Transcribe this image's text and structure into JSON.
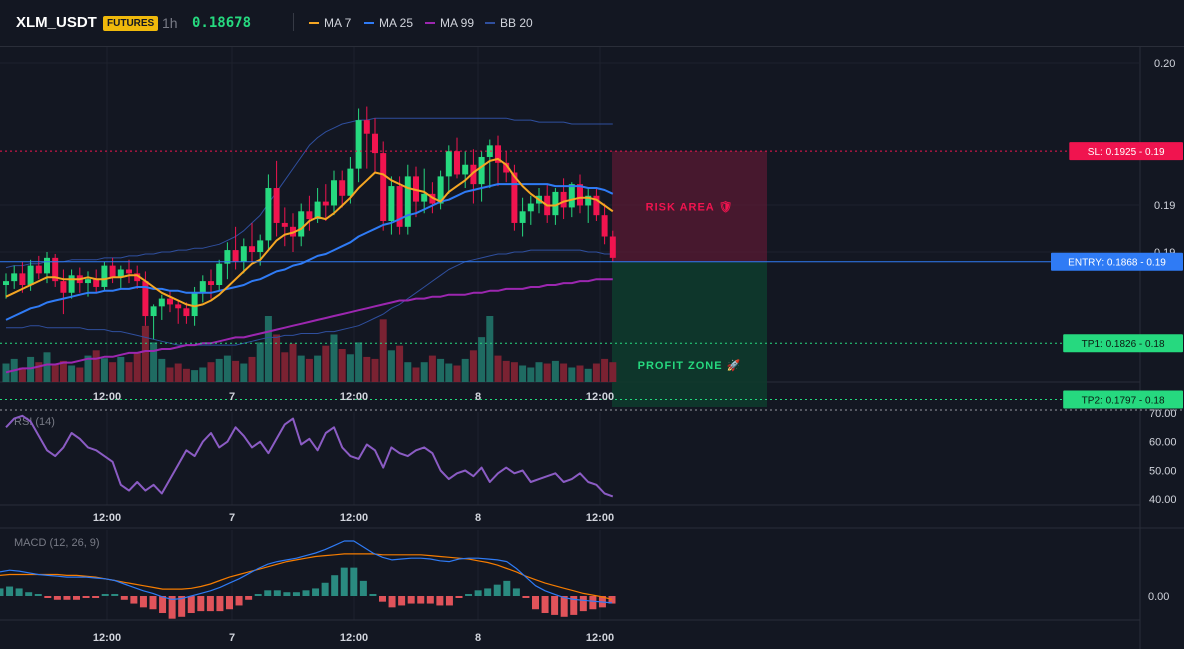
{
  "header": {
    "symbol": "XLM_USDT",
    "badge": "FUTURES",
    "timeframe": "1h",
    "last_price": "0.18678",
    "indicators": [
      {
        "label": "MA 7",
        "color": "#f5a623"
      },
      {
        "label": "MA 25",
        "color": "#2f7bf5"
      },
      {
        "label": "MA 99",
        "color": "#9c27b0"
      },
      {
        "label": "BB 20",
        "color": "#2f4f9e"
      }
    ]
  },
  "colors": {
    "background": "#131722",
    "bull": "#26d97f",
    "bear": "#f0144f",
    "vol_bull": "#1f6b62",
    "vol_bear": "#7a2232",
    "sl": "#f0144f",
    "entry": "#2f7bf5",
    "tp": "#26d97f",
    "rsi": "#8b5cc4",
    "macd": "#2f7bf5",
    "signal": "#f57c00",
    "hist_pos": "#2a8a80",
    "hist_neg": "#e0535a"
  },
  "chart_data": {
    "type": "candlestick",
    "x_ticks": [
      "12:00",
      "7",
      "12:00",
      "8",
      "12:00"
    ],
    "y_ticks": [
      "0.20",
      "0.19",
      "0.19"
    ],
    "candles": [
      [
        0.1856,
        0.1862,
        0.1849,
        0.1858
      ],
      [
        0.1858,
        0.1866,
        0.1854,
        0.1862
      ],
      [
        0.1862,
        0.1868,
        0.1852,
        0.1856
      ],
      [
        0.1856,
        0.1869,
        0.1853,
        0.1866
      ],
      [
        0.1866,
        0.1871,
        0.1859,
        0.1862
      ],
      [
        0.1862,
        0.1873,
        0.1857,
        0.187
      ],
      [
        0.187,
        0.1872,
        0.1855,
        0.1858
      ],
      [
        0.1858,
        0.1864,
        0.1841,
        0.1852
      ],
      [
        0.1852,
        0.1864,
        0.1849,
        0.1861
      ],
      [
        0.1861,
        0.1865,
        0.1852,
        0.1857
      ],
      [
        0.1857,
        0.1863,
        0.185,
        0.1859
      ],
      [
        0.1859,
        0.1864,
        0.1852,
        0.1855
      ],
      [
        0.1855,
        0.1868,
        0.1853,
        0.1866
      ],
      [
        0.1866,
        0.187,
        0.1857,
        0.186
      ],
      [
        0.186,
        0.1866,
        0.1854,
        0.1864
      ],
      [
        0.1864,
        0.1869,
        0.1857,
        0.1862
      ],
      [
        0.1862,
        0.1866,
        0.1854,
        0.1858
      ],
      [
        0.1858,
        0.1863,
        0.1835,
        0.184
      ],
      [
        0.184,
        0.1846,
        0.1828,
        0.1845
      ],
      [
        0.1845,
        0.1851,
        0.1838,
        0.1849
      ],
      [
        0.1849,
        0.1853,
        0.1842,
        0.1846
      ],
      [
        0.1846,
        0.1848,
        0.1836,
        0.1844
      ],
      [
        0.1844,
        0.1847,
        0.1836,
        0.184
      ],
      [
        0.184,
        0.1855,
        0.1835,
        0.1852
      ],
      [
        0.1852,
        0.1861,
        0.1847,
        0.1858
      ],
      [
        0.1858,
        0.1864,
        0.1849,
        0.1856
      ],
      [
        0.1856,
        0.1869,
        0.1853,
        0.1867
      ],
      [
        0.1867,
        0.1878,
        0.1859,
        0.1874
      ],
      [
        0.1874,
        0.1886,
        0.1864,
        0.1868
      ],
      [
        0.1868,
        0.188,
        0.1862,
        0.1876
      ],
      [
        0.1876,
        0.1888,
        0.1868,
        0.1873
      ],
      [
        0.1873,
        0.1882,
        0.1866,
        0.1879
      ],
      [
        0.1879,
        0.1913,
        0.1874,
        0.1906
      ],
      [
        0.1906,
        0.192,
        0.1881,
        0.1888
      ],
      [
        0.1888,
        0.1896,
        0.1876,
        0.1886
      ],
      [
        0.1886,
        0.1893,
        0.1873,
        0.1881
      ],
      [
        0.1881,
        0.1898,
        0.1876,
        0.1894
      ],
      [
        0.1894,
        0.1902,
        0.1884,
        0.189
      ],
      [
        0.189,
        0.1906,
        0.1888,
        0.1899
      ],
      [
        0.1899,
        0.1908,
        0.1889,
        0.1897
      ],
      [
        0.1897,
        0.1915,
        0.1892,
        0.191
      ],
      [
        0.191,
        0.1915,
        0.1896,
        0.1902
      ],
      [
        0.1902,
        0.1922,
        0.1898,
        0.1916
      ],
      [
        0.1916,
        0.1947,
        0.1909,
        0.1941
      ],
      [
        0.1941,
        0.1948,
        0.1916,
        0.1934
      ],
      [
        0.1934,
        0.1942,
        0.1914,
        0.1924
      ],
      [
        0.1924,
        0.193,
        0.1884,
        0.1889
      ],
      [
        0.1889,
        0.1912,
        0.1882,
        0.1907
      ],
      [
        0.1907,
        0.1912,
        0.1882,
        0.1886
      ],
      [
        0.1886,
        0.1918,
        0.1882,
        0.1912
      ],
      [
        0.1912,
        0.1917,
        0.1891,
        0.1899
      ],
      [
        0.1899,
        0.1916,
        0.1893,
        0.1903
      ],
      [
        0.1903,
        0.1909,
        0.1893,
        0.1898
      ],
      [
        0.1898,
        0.1915,
        0.1895,
        0.1912
      ],
      [
        0.1912,
        0.1928,
        0.1903,
        0.1925
      ],
      [
        0.1925,
        0.1932,
        0.1911,
        0.1913
      ],
      [
        0.1913,
        0.1925,
        0.1906,
        0.1918
      ],
      [
        0.1918,
        0.1926,
        0.1898,
        0.1908
      ],
      [
        0.1908,
        0.1925,
        0.1899,
        0.1922
      ],
      [
        0.1922,
        0.1931,
        0.1906,
        0.1928
      ],
      [
        0.1928,
        0.1933,
        0.1907,
        0.1919
      ],
      [
        0.1919,
        0.1925,
        0.1909,
        0.1914
      ],
      [
        0.1914,
        0.1918,
        0.1884,
        0.1888
      ],
      [
        0.1888,
        0.1901,
        0.1881,
        0.1894
      ],
      [
        0.1894,
        0.1902,
        0.1887,
        0.1898
      ],
      [
        0.1898,
        0.1906,
        0.1893,
        0.1902
      ],
      [
        0.1902,
        0.1908,
        0.1888,
        0.1892
      ],
      [
        0.1892,
        0.1906,
        0.1887,
        0.1904
      ],
      [
        0.1904,
        0.1911,
        0.189,
        0.1896
      ],
      [
        0.1896,
        0.1909,
        0.1891,
        0.1908
      ],
      [
        0.1908,
        0.1913,
        0.1893,
        0.1897
      ],
      [
        0.1897,
        0.1906,
        0.1888,
        0.1902
      ],
      [
        0.1902,
        0.1906,
        0.1889,
        0.1892
      ],
      [
        0.1892,
        0.1898,
        0.1877,
        0.1881
      ],
      [
        0.1881,
        0.1884,
        0.1868,
        0.187
      ]
    ],
    "ma7": [
      0.185,
      0.1852,
      0.1854,
      0.1856,
      0.1858,
      0.186,
      0.186,
      0.1859,
      0.1859,
      0.1859,
      0.186,
      0.1859,
      0.1859,
      0.186,
      0.186,
      0.1861,
      0.1861,
      0.1858,
      0.1855,
      0.1852,
      0.185,
      0.1848,
      0.1846,
      0.1845,
      0.1846,
      0.1848,
      0.1851,
      0.1855,
      0.1859,
      0.1863,
      0.1867,
      0.1869,
      0.1874,
      0.1879,
      0.1882,
      0.1883,
      0.1885,
      0.1889,
      0.1891,
      0.189,
      0.1893,
      0.1897,
      0.1901,
      0.1906,
      0.191,
      0.1914,
      0.1913,
      0.191,
      0.1908,
      0.1906,
      0.1905,
      0.1904,
      0.1901,
      0.1899,
      0.1904,
      0.1907,
      0.191,
      0.1914,
      0.1917,
      0.192,
      0.1921,
      0.1918,
      0.1912,
      0.1907,
      0.1903,
      0.19,
      0.1897,
      0.1897,
      0.1899,
      0.19,
      0.1901,
      0.1901,
      0.19,
      0.1897,
      0.1894
    ],
    "ma25": [
      0.1838,
      0.184,
      0.1842,
      0.1844,
      0.1845,
      0.1847,
      0.1848,
      0.1849,
      0.185,
      0.1851,
      0.1852,
      0.1852,
      0.1853,
      0.1853,
      0.1854,
      0.1854,
      0.1855,
      0.1855,
      0.1854,
      0.1854,
      0.1853,
      0.1853,
      0.1852,
      0.1852,
      0.1852,
      0.1852,
      0.1853,
      0.1854,
      0.1855,
      0.1856,
      0.1858,
      0.1859,
      0.1861,
      0.1863,
      0.1864,
      0.1866,
      0.1867,
      0.1869,
      0.1871,
      0.1872,
      0.1874,
      0.1876,
      0.1878,
      0.1881,
      0.1883,
      0.1885,
      0.1887,
      0.1888,
      0.189,
      0.1892,
      0.1893,
      0.1895,
      0.1897,
      0.1899,
      0.19,
      0.1902,
      0.1904,
      0.1905,
      0.1906,
      0.1907,
      0.1908,
      0.1908,
      0.1908,
      0.1908,
      0.1908,
      0.1908,
      0.1908,
      0.1907,
      0.1907,
      0.1907,
      0.1907,
      0.1906,
      0.1906,
      0.1905,
      0.1903
    ],
    "ma99": [
      0.1811,
      0.1812,
      0.1813,
      0.1813,
      0.1814,
      0.1815,
      0.1815,
      0.1816,
      0.1816,
      0.1817,
      0.1818,
      0.1818,
      0.1819,
      0.1819,
      0.182,
      0.1821,
      0.1821,
      0.1822,
      0.1822,
      0.1823,
      0.1823,
      0.1824,
      0.1825,
      0.1825,
      0.1826,
      0.1826,
      0.1827,
      0.1828,
      0.1829,
      0.1829,
      0.183,
      0.1831,
      0.1832,
      0.1833,
      0.1834,
      0.1835,
      0.1836,
      0.1837,
      0.1838,
      0.1839,
      0.184,
      0.1841,
      0.1842,
      0.1843,
      0.1844,
      0.1845,
      0.1846,
      0.1847,
      0.1848,
      0.1848,
      0.1849,
      0.1849,
      0.185,
      0.185,
      0.1851,
      0.1851,
      0.1851,
      0.1852,
      0.1852,
      0.1853,
      0.1853,
      0.1854,
      0.1854,
      0.1854,
      0.1855,
      0.1855,
      0.1856,
      0.1856,
      0.1857,
      0.1857,
      0.1858,
      0.1858,
      0.1859,
      0.1859,
      0.1859
    ],
    "bb_upper": [
      0.1865,
      0.1866,
      0.1866,
      0.1867,
      0.1867,
      0.1868,
      0.1868,
      0.1868,
      0.1869,
      0.1869,
      0.1869,
      0.1869,
      0.187,
      0.187,
      0.187,
      0.1871,
      0.1871,
      0.1872,
      0.1872,
      0.1873,
      0.1873,
      0.1874,
      0.1874,
      0.1875,
      0.1875,
      0.1876,
      0.1877,
      0.1879,
      0.1881,
      0.1884,
      0.1888,
      0.1892,
      0.1898,
      0.1904,
      0.191,
      0.1916,
      0.1922,
      0.1928,
      0.1932,
      0.1935,
      0.1937,
      0.1939,
      0.194,
      0.1941,
      0.1941,
      0.1942,
      0.1942,
      0.1942,
      0.1942,
      0.1942,
      0.1942,
      0.1942,
      0.1942,
      0.1942,
      0.1942,
      0.1942,
      0.1942,
      0.1942,
      0.1942,
      0.1942,
      0.1942,
      0.1942,
      0.1941,
      0.1941,
      0.1941,
      0.194,
      0.194,
      0.194,
      0.194,
      0.1939,
      0.1939,
      0.1939,
      0.1939,
      0.1939,
      0.1939
    ],
    "bb_lower": [
      0.1834,
      0.1834,
      0.1834,
      0.1835,
      0.1835,
      0.1834,
      0.1834,
      0.1834,
      0.1834,
      0.1834,
      0.1833,
      0.1833,
      0.1833,
      0.1832,
      0.1832,
      0.1831,
      0.183,
      0.1829,
      0.1828,
      0.1827,
      0.1826,
      0.1825,
      0.1825,
      0.1825,
      0.1825,
      0.1825,
      0.1825,
      0.1825,
      0.1825,
      0.1826,
      0.1827,
      0.1828,
      0.1829,
      0.1829,
      0.183,
      0.183,
      0.1831,
      0.1831,
      0.1831,
      0.1832,
      0.1832,
      0.1833,
      0.1834,
      0.1835,
      0.1837,
      0.1839,
      0.1841,
      0.1844,
      0.1846,
      0.1849,
      0.1852,
      0.1855,
      0.1858,
      0.1861,
      0.1864,
      0.1866,
      0.1868,
      0.1869,
      0.187,
      0.1871,
      0.1872,
      0.1872,
      0.1873,
      0.1873,
      0.1874,
      0.1874,
      0.1874,
      0.1874,
      0.1874,
      0.1874,
      0.1874,
      0.1873,
      0.1873,
      0.1872,
      0.1872
    ],
    "volume": [
      0.28,
      0.35,
      0.22,
      0.38,
      0.3,
      0.45,
      0.28,
      0.32,
      0.25,
      0.22,
      0.4,
      0.48,
      0.36,
      0.3,
      0.38,
      0.3,
      0.45,
      0.85,
      0.6,
      0.35,
      0.22,
      0.28,
      0.2,
      0.18,
      0.22,
      0.3,
      0.35,
      0.4,
      0.32,
      0.28,
      0.38,
      0.6,
      1.0,
      0.72,
      0.45,
      0.58,
      0.4,
      0.35,
      0.4,
      0.55,
      0.72,
      0.5,
      0.42,
      0.6,
      0.38,
      0.35,
      0.95,
      0.48,
      0.55,
      0.3,
      0.22,
      0.3,
      0.4,
      0.35,
      0.28,
      0.25,
      0.35,
      0.48,
      0.68,
      1.0,
      0.4,
      0.32,
      0.3,
      0.25,
      0.22,
      0.3,
      0.28,
      0.32,
      0.28,
      0.22,
      0.25,
      0.2,
      0.28,
      0.35,
      0.3
    ],
    "levels": {
      "sl": {
        "label": "SL: 0.1925 - 0.19",
        "value": 0.1925
      },
      "entry": {
        "label": "ENTRY: 0.1868 - 0.19",
        "value": 0.1868
      },
      "tp1": {
        "label": "TP1: 0.1826 - 0.18",
        "value": 0.1826
      },
      "tp2": {
        "label": "TP2: 0.1797 - 0.18",
        "value": 0.1797
      }
    },
    "zones": {
      "risk": {
        "label": "RISK AREA 🛡",
        "from": 0.1925,
        "to": 0.1868
      },
      "profit": {
        "label": "PROFIT ZONE 🚀",
        "from": 0.1868,
        "to": 0.177
      }
    },
    "rsi": {
      "label": "RSI (14)",
      "y_ticks": [
        "70.00",
        "60.00",
        "50.00",
        "40.00"
      ],
      "values": [
        65,
        68,
        69,
        67,
        62,
        57,
        55,
        58,
        63,
        61,
        58,
        57,
        55,
        53,
        45,
        43,
        46,
        43,
        45,
        42,
        47,
        52,
        57,
        55,
        60,
        63,
        58,
        60,
        65,
        62,
        58,
        60,
        56,
        61,
        66,
        68,
        59,
        61,
        57,
        63,
        65,
        58,
        55,
        54,
        59,
        57,
        51,
        58,
        56,
        55,
        57,
        58,
        56,
        50,
        47,
        49,
        50,
        48,
        51,
        46,
        49,
        51,
        49,
        50,
        46,
        47,
        48,
        49,
        46,
        47,
        49,
        46,
        45,
        42,
        41
      ]
    },
    "macd": {
      "label": "MACD (12, 26, 9)",
      "y_ticks": [
        "0.00"
      ],
      "macd": [
        0.00028,
        0.0003,
        0.00029,
        0.00027,
        0.00025,
        0.00024,
        0.00023,
        0.00022,
        0.00022,
        0.00022,
        0.00021,
        0.0002,
        0.00018,
        0.00014,
        0.0001,
        6e-05,
        3e-05,
        -1e-05,
        -4e-05,
        -3e-05,
        0.0,
        3e-05,
        6e-05,
        0.0001,
        0.00015,
        0.0002,
        0.00026,
        0.00032,
        0.00037,
        0.0004,
        0.00042,
        0.00044,
        0.00047,
        0.0005,
        0.00054,
        0.00059,
        0.00064,
        0.00064,
        0.00057,
        0.0005,
        0.00045,
        0.00042,
        0.00043,
        0.00044,
        0.00044,
        0.00043,
        0.00041,
        0.0004,
        0.00043,
        0.00044,
        0.00044,
        0.00043,
        0.00042,
        0.0004,
        0.00032,
        0.00022,
        0.00012,
        6e-05,
        2e-05,
        -2e-05,
        -4e-05,
        -5e-05,
        -6e-05,
        -7e-05,
        -8e-05
      ],
      "signal": [
        0.00024,
        0.00025,
        0.00025,
        0.00025,
        0.00025,
        0.00025,
        0.00025,
        0.00024,
        0.00024,
        0.00023,
        0.00022,
        0.0002,
        0.00018,
        0.00016,
        0.00014,
        0.00012,
        0.0001,
        8e-05,
        8e-05,
        8e-05,
        9e-05,
        0.00011,
        0.00014,
        0.00018,
        0.00022,
        0.00025,
        0.00028,
        0.00031,
        0.00034,
        0.00037,
        0.0004,
        0.00042,
        0.00044,
        0.00046,
        0.00047,
        0.00048,
        0.00049,
        0.00049,
        0.00049,
        0.00049,
        0.00048,
        0.00048,
        0.00048,
        0.00048,
        0.00048,
        0.00047,
        0.00046,
        0.00045,
        0.00044,
        0.00043,
        0.00041,
        0.00039,
        0.00036,
        0.00032,
        0.00028,
        0.00023,
        0.00019,
        0.00015,
        0.00012,
        9e-05,
        6e-05,
        3e-05,
        1e-05,
        -1e-05,
        -4e-05
      ]
    }
  }
}
